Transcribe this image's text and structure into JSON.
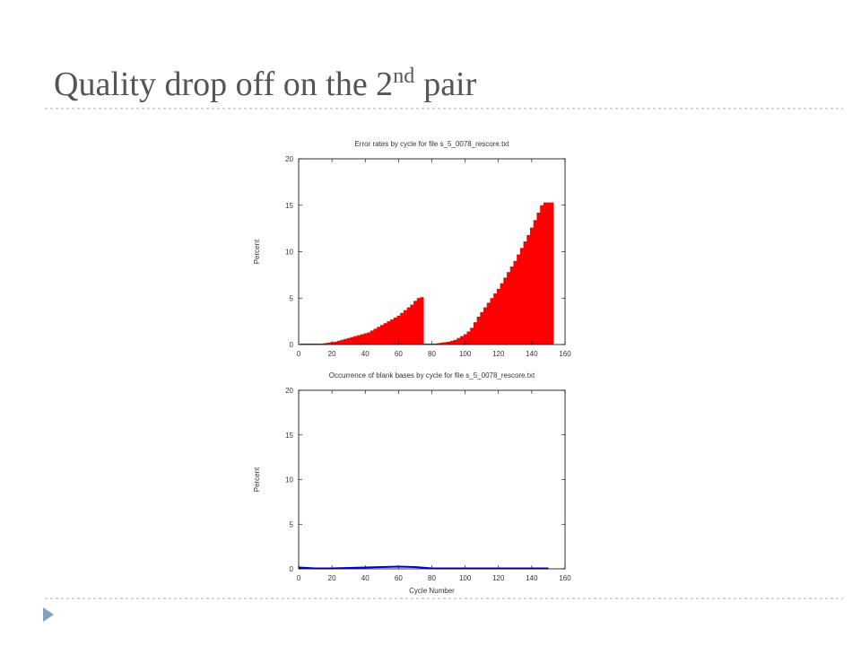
{
  "slide": {
    "title": "Quality drop off on the 2",
    "title_superscript": "nd",
    "title_end": "pair"
  },
  "chart_data": [
    {
      "type": "bar",
      "title": "Error rates by cycle for file s_5_0078_rescore.txt",
      "ylabel": "Percent",
      "color": "#ff0000",
      "x": [
        2,
        4,
        6,
        8,
        10,
        12,
        14,
        16,
        18,
        20,
        22,
        24,
        26,
        28,
        30,
        32,
        34,
        36,
        38,
        40,
        42,
        44,
        46,
        48,
        50,
        52,
        54,
        56,
        58,
        60,
        62,
        64,
        66,
        68,
        70,
        72,
        74,
        76,
        78,
        80,
        82,
        84,
        86,
        88,
        90,
        92,
        94,
        96,
        98,
        100,
        102,
        104,
        106,
        108,
        110,
        112,
        114,
        116,
        118,
        120,
        122,
        124,
        126,
        128,
        130,
        132,
        134,
        136,
        138,
        140,
        142,
        144,
        146,
        148,
        150,
        152
      ],
      "values": [
        0.1,
        0.1,
        0.1,
        0.1,
        0.1,
        0.1,
        0.1,
        0.15,
        0.2,
        0.25,
        0.3,
        0.4,
        0.5,
        0.6,
        0.7,
        0.8,
        0.9,
        1.0,
        1.1,
        1.2,
        1.3,
        1.5,
        1.7,
        1.9,
        2.1,
        2.3,
        2.5,
        2.7,
        2.9,
        3.1,
        3.4,
        3.7,
        4.0,
        4.3,
        4.7,
        5.0,
        5.1,
        0.1,
        0.1,
        0.1,
        0.1,
        0.15,
        0.2,
        0.25,
        0.3,
        0.4,
        0.5,
        0.7,
        0.9,
        1.1,
        1.4,
        1.8,
        2.4,
        3.0,
        3.5,
        4.0,
        4.5,
        5.0,
        5.5,
        6.0,
        6.6,
        7.2,
        7.8,
        8.4,
        9.0,
        9.7,
        10.4,
        11.1,
        11.8,
        12.6,
        13.4,
        14.2,
        15.0,
        15.3,
        15.3,
        15.3
      ],
      "xlim": [
        0,
        160
      ],
      "xticks": [
        0,
        20,
        40,
        60,
        80,
        100,
        120,
        140,
        160
      ],
      "ylim": [
        0,
        20
      ],
      "yticks": [
        0,
        5,
        10,
        15,
        20
      ]
    },
    {
      "type": "line",
      "title": "Occurrence of blank bases by cycle for file s_5_0078_rescore.txt",
      "ylabel": "Percent",
      "xlabel": "Cycle Number",
      "color": "#0000cc",
      "x": [
        0,
        10,
        20,
        30,
        40,
        50,
        60,
        70,
        80,
        90,
        100,
        110,
        120,
        130,
        140,
        150
      ],
      "values": [
        0.15,
        0.05,
        0.05,
        0.1,
        0.15,
        0.2,
        0.25,
        0.2,
        0.05,
        0.05,
        0.05,
        0.05,
        0.05,
        0.05,
        0.05,
        0.05
      ],
      "xlim": [
        0,
        160
      ],
      "xticks": [
        0,
        20,
        40,
        60,
        80,
        100,
        120,
        140,
        160
      ],
      "ylim": [
        0,
        20
      ],
      "yticks": [
        0,
        5,
        10,
        15,
        20
      ]
    }
  ]
}
